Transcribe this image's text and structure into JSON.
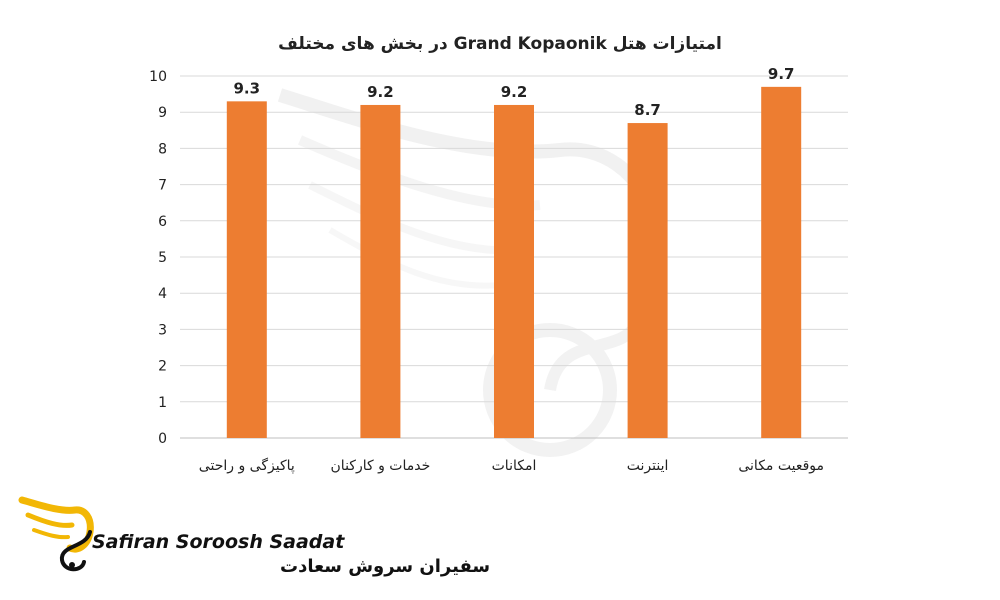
{
  "chart_data": {
    "type": "bar",
    "title": "امتیازات هتل Grand Kopaonik در بخش های مختلف",
    "categories": [
      "پاکیزگی و راحتی",
      "خدمات و کارکنان",
      "امکانات",
      "اینترنت",
      "موقعیت مکانی"
    ],
    "values": [
      9.3,
      9.2,
      9.2,
      8.7,
      9.7
    ],
    "ylim": [
      0,
      10
    ],
    "yticks": [
      "0",
      "1",
      "2",
      "3",
      "4",
      "5",
      "6",
      "7",
      "8",
      "9",
      "10"
    ],
    "bar_color": "#ED7D31",
    "grid": true,
    "legend": "none"
  },
  "logo": {
    "name_en": "Safiran Soroosh Saadat",
    "name_fa": "سفیران سروش سعادت",
    "accent_color": "#F2B705",
    "icon": "swan-logo-icon"
  }
}
